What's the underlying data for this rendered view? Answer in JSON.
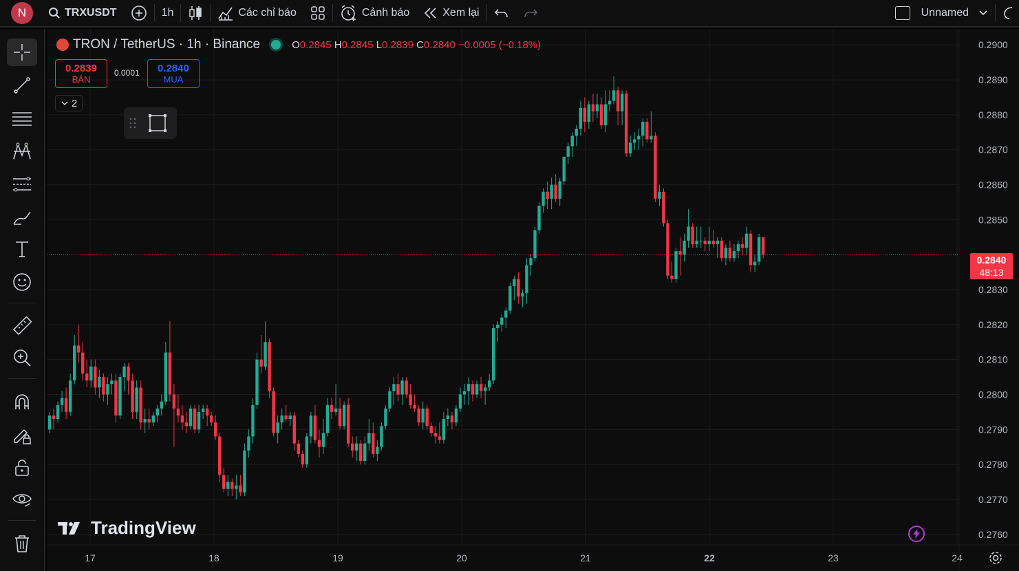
{
  "topbar": {
    "avatar_letter": "N",
    "symbol": "TRXUSDT",
    "interval": "1h",
    "indicators_label": "Các chỉ báo",
    "alerts_label": "Cảnh báo",
    "replay_label": "Xem lại",
    "layout_name": "Unnamed"
  },
  "legend": {
    "title": "TRON / TetherUS · 1h · Binance",
    "o_key": "O",
    "o_val": "0.2845",
    "h_key": "H",
    "h_val": "0.2845",
    "l_key": "L",
    "l_val": "0.2839",
    "c_key": "C",
    "c_val": "0.2840",
    "change": "−0.0005 (−0.18%)"
  },
  "trade": {
    "sell_price": "0.2839",
    "sell_label": "BÁN",
    "spread": "0.0001",
    "buy_price": "0.2840",
    "buy_label": "MUA",
    "collapse_count": "2"
  },
  "branding": {
    "logo_text": "TradingView"
  },
  "price_tag": {
    "price": "0.2840",
    "countdown": "48:13"
  },
  "colors": {
    "up": "#22ab94",
    "down": "#f23645",
    "background": "#0d0d0d",
    "grid": "#1c1c1c",
    "buy": "#2962ff"
  },
  "left_tools": [
    "crosshair-icon",
    "trend-line-icon",
    "horizontal-lines-icon",
    "pitchfork-icon",
    "fib-retracement-icon",
    "brush-icon",
    "text-icon",
    "emoji-icon",
    "ruler-icon",
    "zoom-in-icon",
    "magnet-icon",
    "lock-pencil-icon",
    "lock-icon",
    "eye-icon",
    "trash-icon"
  ],
  "chart_data": {
    "type": "candlestick",
    "title": "TRON / TetherUS · 1h · Binance",
    "x_tick_labels": [
      "17",
      "18",
      "19",
      "20",
      "21",
      "22",
      "23",
      "24"
    ],
    "y_tick_labels": [
      "0.2900",
      "0.2890",
      "0.2880",
      "0.2870",
      "0.2860",
      "0.2850",
      "0.2830",
      "0.2820",
      "0.2810",
      "0.2800",
      "0.2790",
      "0.2780",
      "0.2770",
      "0.2760"
    ],
    "ylim": [
      0.2757,
      0.2903
    ],
    "current_price": 0.284,
    "grid": true,
    "candles": [
      {
        "o": 0.279,
        "h": 0.2795,
        "l": 0.2789,
        "c": 0.2794
      },
      {
        "o": 0.2794,
        "h": 0.2796,
        "l": 0.279,
        "c": 0.2793
      },
      {
        "o": 0.2793,
        "h": 0.2798,
        "l": 0.2792,
        "c": 0.2797
      },
      {
        "o": 0.2797,
        "h": 0.2801,
        "l": 0.2795,
        "c": 0.2799
      },
      {
        "o": 0.2799,
        "h": 0.2802,
        "l": 0.2793,
        "c": 0.2795
      },
      {
        "o": 0.2795,
        "h": 0.2806,
        "l": 0.2794,
        "c": 0.2804
      },
      {
        "o": 0.2804,
        "h": 0.2817,
        "l": 0.2803,
        "c": 0.2814
      },
      {
        "o": 0.2814,
        "h": 0.282,
        "l": 0.2809,
        "c": 0.2812
      },
      {
        "o": 0.2812,
        "h": 0.2815,
        "l": 0.2804,
        "c": 0.2806
      },
      {
        "o": 0.2806,
        "h": 0.281,
        "l": 0.2802,
        "c": 0.2804
      },
      {
        "o": 0.2804,
        "h": 0.281,
        "l": 0.2802,
        "c": 0.2808
      },
      {
        "o": 0.2808,
        "h": 0.281,
        "l": 0.28,
        "c": 0.2802
      },
      {
        "o": 0.2802,
        "h": 0.2807,
        "l": 0.2799,
        "c": 0.2805
      },
      {
        "o": 0.2805,
        "h": 0.2806,
        "l": 0.2798,
        "c": 0.28
      },
      {
        "o": 0.28,
        "h": 0.2805,
        "l": 0.2797,
        "c": 0.2803
      },
      {
        "o": 0.2803,
        "h": 0.2806,
        "l": 0.28,
        "c": 0.2804
      },
      {
        "o": 0.2804,
        "h": 0.2806,
        "l": 0.2792,
        "c": 0.2794
      },
      {
        "o": 0.2794,
        "h": 0.2806,
        "l": 0.2793,
        "c": 0.2805
      },
      {
        "o": 0.2805,
        "h": 0.2809,
        "l": 0.2801,
        "c": 0.2808
      },
      {
        "o": 0.2808,
        "h": 0.2809,
        "l": 0.28,
        "c": 0.2804
      },
      {
        "o": 0.2804,
        "h": 0.2806,
        "l": 0.2793,
        "c": 0.2795
      },
      {
        "o": 0.2795,
        "h": 0.2804,
        "l": 0.2793,
        "c": 0.2802
      },
      {
        "o": 0.2802,
        "h": 0.2804,
        "l": 0.279,
        "c": 0.2792
      },
      {
        "o": 0.2792,
        "h": 0.2796,
        "l": 0.2789,
        "c": 0.2793
      },
      {
        "o": 0.2793,
        "h": 0.2796,
        "l": 0.279,
        "c": 0.2792
      },
      {
        "o": 0.2792,
        "h": 0.2795,
        "l": 0.2791,
        "c": 0.2794
      },
      {
        "o": 0.2794,
        "h": 0.2797,
        "l": 0.2792,
        "c": 0.2796
      },
      {
        "o": 0.2796,
        "h": 0.28,
        "l": 0.2794,
        "c": 0.2798
      },
      {
        "o": 0.2798,
        "h": 0.2815,
        "l": 0.2797,
        "c": 0.2812
      },
      {
        "o": 0.2812,
        "h": 0.2821,
        "l": 0.2798,
        "c": 0.28
      },
      {
        "o": 0.28,
        "h": 0.2803,
        "l": 0.2785,
        "c": 0.2796
      },
      {
        "o": 0.2796,
        "h": 0.28,
        "l": 0.2792,
        "c": 0.2794
      },
      {
        "o": 0.2794,
        "h": 0.2797,
        "l": 0.279,
        "c": 0.2792
      },
      {
        "o": 0.2792,
        "h": 0.2795,
        "l": 0.2789,
        "c": 0.2791
      },
      {
        "o": 0.2791,
        "h": 0.2797,
        "l": 0.279,
        "c": 0.2796
      },
      {
        "o": 0.2796,
        "h": 0.2797,
        "l": 0.2789,
        "c": 0.279
      },
      {
        "o": 0.279,
        "h": 0.2797,
        "l": 0.2789,
        "c": 0.2795
      },
      {
        "o": 0.2795,
        "h": 0.2797,
        "l": 0.2793,
        "c": 0.2796
      },
      {
        "o": 0.2796,
        "h": 0.2797,
        "l": 0.2791,
        "c": 0.2794
      },
      {
        "o": 0.2794,
        "h": 0.2795,
        "l": 0.2791,
        "c": 0.2792
      },
      {
        "o": 0.2792,
        "h": 0.2794,
        "l": 0.2787,
        "c": 0.2788
      },
      {
        "o": 0.2788,
        "h": 0.2789,
        "l": 0.2775,
        "c": 0.2777
      },
      {
        "o": 0.2777,
        "h": 0.2779,
        "l": 0.2772,
        "c": 0.2773
      },
      {
        "o": 0.2773,
        "h": 0.2777,
        "l": 0.2771,
        "c": 0.2775
      },
      {
        "o": 0.2775,
        "h": 0.2776,
        "l": 0.2771,
        "c": 0.2773
      },
      {
        "o": 0.2773,
        "h": 0.2777,
        "l": 0.277,
        "c": 0.2774
      },
      {
        "o": 0.2774,
        "h": 0.2777,
        "l": 0.2771,
        "c": 0.2772
      },
      {
        "o": 0.2772,
        "h": 0.2786,
        "l": 0.2771,
        "c": 0.2784
      },
      {
        "o": 0.2784,
        "h": 0.279,
        "l": 0.2782,
        "c": 0.2788
      },
      {
        "o": 0.2788,
        "h": 0.2799,
        "l": 0.2786,
        "c": 0.2797
      },
      {
        "o": 0.2797,
        "h": 0.2812,
        "l": 0.2796,
        "c": 0.281
      },
      {
        "o": 0.281,
        "h": 0.2817,
        "l": 0.2806,
        "c": 0.2808
      },
      {
        "o": 0.2808,
        "h": 0.2821,
        "l": 0.2807,
        "c": 0.2815
      },
      {
        "o": 0.2815,
        "h": 0.2816,
        "l": 0.2799,
        "c": 0.2801
      },
      {
        "o": 0.2801,
        "h": 0.2802,
        "l": 0.2788,
        "c": 0.2789
      },
      {
        "o": 0.2789,
        "h": 0.2794,
        "l": 0.2786,
        "c": 0.2792
      },
      {
        "o": 0.2792,
        "h": 0.2796,
        "l": 0.279,
        "c": 0.2794
      },
      {
        "o": 0.2794,
        "h": 0.2797,
        "l": 0.2792,
        "c": 0.2793
      },
      {
        "o": 0.2793,
        "h": 0.2795,
        "l": 0.2791,
        "c": 0.2794
      },
      {
        "o": 0.2794,
        "h": 0.2795,
        "l": 0.2784,
        "c": 0.2786
      },
      {
        "o": 0.2786,
        "h": 0.2787,
        "l": 0.2782,
        "c": 0.2783
      },
      {
        "o": 0.2783,
        "h": 0.2784,
        "l": 0.2779,
        "c": 0.278
      },
      {
        "o": 0.278,
        "h": 0.2789,
        "l": 0.2779,
        "c": 0.2788
      },
      {
        "o": 0.2788,
        "h": 0.2795,
        "l": 0.2786,
        "c": 0.2794
      },
      {
        "o": 0.2794,
        "h": 0.2797,
        "l": 0.2786,
        "c": 0.2787
      },
      {
        "o": 0.2787,
        "h": 0.279,
        "l": 0.2782,
        "c": 0.2785
      },
      {
        "o": 0.2785,
        "h": 0.2793,
        "l": 0.2783,
        "c": 0.2789
      },
      {
        "o": 0.2789,
        "h": 0.2799,
        "l": 0.2788,
        "c": 0.2797
      },
      {
        "o": 0.2797,
        "h": 0.2799,
        "l": 0.2793,
        "c": 0.2795
      },
      {
        "o": 0.2795,
        "h": 0.2803,
        "l": 0.2794,
        "c": 0.2796
      },
      {
        "o": 0.2796,
        "h": 0.2799,
        "l": 0.279,
        "c": 0.2791
      },
      {
        "o": 0.2791,
        "h": 0.2798,
        "l": 0.279,
        "c": 0.2797
      },
      {
        "o": 0.2797,
        "h": 0.2799,
        "l": 0.2785,
        "c": 0.2786
      },
      {
        "o": 0.2786,
        "h": 0.2788,
        "l": 0.2782,
        "c": 0.2784
      },
      {
        "o": 0.2784,
        "h": 0.2788,
        "l": 0.2781,
        "c": 0.2786
      },
      {
        "o": 0.2786,
        "h": 0.2787,
        "l": 0.278,
        "c": 0.2781
      },
      {
        "o": 0.2781,
        "h": 0.2788,
        "l": 0.278,
        "c": 0.2786
      },
      {
        "o": 0.2786,
        "h": 0.2793,
        "l": 0.2784,
        "c": 0.2789
      },
      {
        "o": 0.2789,
        "h": 0.2792,
        "l": 0.2782,
        "c": 0.2783
      },
      {
        "o": 0.2783,
        "h": 0.2787,
        "l": 0.2781,
        "c": 0.2785
      },
      {
        "o": 0.2785,
        "h": 0.2792,
        "l": 0.2784,
        "c": 0.2791
      },
      {
        "o": 0.2791,
        "h": 0.2797,
        "l": 0.279,
        "c": 0.2796
      },
      {
        "o": 0.2796,
        "h": 0.2802,
        "l": 0.2795,
        "c": 0.2801
      },
      {
        "o": 0.2801,
        "h": 0.2805,
        "l": 0.2797,
        "c": 0.2803
      },
      {
        "o": 0.2803,
        "h": 0.2806,
        "l": 0.2798,
        "c": 0.28
      },
      {
        "o": 0.28,
        "h": 0.2805,
        "l": 0.2797,
        "c": 0.2804
      },
      {
        "o": 0.2804,
        "h": 0.2805,
        "l": 0.2799,
        "c": 0.28
      },
      {
        "o": 0.28,
        "h": 0.2803,
        "l": 0.2796,
        "c": 0.2797
      },
      {
        "o": 0.2797,
        "h": 0.28,
        "l": 0.2795,
        "c": 0.2796
      },
      {
        "o": 0.2796,
        "h": 0.2797,
        "l": 0.2791,
        "c": 0.2792
      },
      {
        "o": 0.2792,
        "h": 0.2798,
        "l": 0.279,
        "c": 0.2796
      },
      {
        "o": 0.2796,
        "h": 0.2797,
        "l": 0.279,
        "c": 0.2791
      },
      {
        "o": 0.2791,
        "h": 0.2792,
        "l": 0.2788,
        "c": 0.2789
      },
      {
        "o": 0.2789,
        "h": 0.2791,
        "l": 0.2786,
        "c": 0.2788
      },
      {
        "o": 0.2788,
        "h": 0.2792,
        "l": 0.2786,
        "c": 0.2787
      },
      {
        "o": 0.2787,
        "h": 0.2795,
        "l": 0.2786,
        "c": 0.2793
      },
      {
        "o": 0.2793,
        "h": 0.2796,
        "l": 0.2791,
        "c": 0.2794
      },
      {
        "o": 0.2794,
        "h": 0.2795,
        "l": 0.279,
        "c": 0.2792
      },
      {
        "o": 0.2792,
        "h": 0.2797,
        "l": 0.2791,
        "c": 0.2796
      },
      {
        "o": 0.2796,
        "h": 0.2802,
        "l": 0.2795,
        "c": 0.28
      },
      {
        "o": 0.28,
        "h": 0.2803,
        "l": 0.2797,
        "c": 0.2801
      },
      {
        "o": 0.2801,
        "h": 0.2805,
        "l": 0.2797,
        "c": 0.2803
      },
      {
        "o": 0.2803,
        "h": 0.2804,
        "l": 0.2798,
        "c": 0.28
      },
      {
        "o": 0.28,
        "h": 0.2804,
        "l": 0.2799,
        "c": 0.2803
      },
      {
        "o": 0.2803,
        "h": 0.2805,
        "l": 0.2799,
        "c": 0.2801
      },
      {
        "o": 0.2801,
        "h": 0.2803,
        "l": 0.2797,
        "c": 0.2802
      },
      {
        "o": 0.2802,
        "h": 0.2806,
        "l": 0.2801,
        "c": 0.2804
      },
      {
        "o": 0.2804,
        "h": 0.282,
        "l": 0.2803,
        "c": 0.2819
      },
      {
        "o": 0.2819,
        "h": 0.2821,
        "l": 0.2815,
        "c": 0.282
      },
      {
        "o": 0.282,
        "h": 0.2823,
        "l": 0.2818,
        "c": 0.2822
      },
      {
        "o": 0.2822,
        "h": 0.2825,
        "l": 0.2819,
        "c": 0.2824
      },
      {
        "o": 0.2824,
        "h": 0.2832,
        "l": 0.2823,
        "c": 0.2831
      },
      {
        "o": 0.2831,
        "h": 0.2834,
        "l": 0.2827,
        "c": 0.2833
      },
      {
        "o": 0.2833,
        "h": 0.2835,
        "l": 0.2826,
        "c": 0.2828
      },
      {
        "o": 0.2828,
        "h": 0.283,
        "l": 0.2825,
        "c": 0.2829
      },
      {
        "o": 0.2829,
        "h": 0.2839,
        "l": 0.2826,
        "c": 0.2837
      },
      {
        "o": 0.2837,
        "h": 0.284,
        "l": 0.2834,
        "c": 0.2839
      },
      {
        "o": 0.2839,
        "h": 0.2848,
        "l": 0.2838,
        "c": 0.2847
      },
      {
        "o": 0.2847,
        "h": 0.2855,
        "l": 0.2846,
        "c": 0.2854
      },
      {
        "o": 0.2854,
        "h": 0.2859,
        "l": 0.2852,
        "c": 0.2858
      },
      {
        "o": 0.2858,
        "h": 0.2861,
        "l": 0.2853,
        "c": 0.2856
      },
      {
        "o": 0.2856,
        "h": 0.2862,
        "l": 0.2853,
        "c": 0.286
      },
      {
        "o": 0.286,
        "h": 0.2863,
        "l": 0.2855,
        "c": 0.2856
      },
      {
        "o": 0.2856,
        "h": 0.2862,
        "l": 0.2854,
        "c": 0.2861
      },
      {
        "o": 0.2861,
        "h": 0.2868,
        "l": 0.286,
        "c": 0.2868
      },
      {
        "o": 0.2868,
        "h": 0.2872,
        "l": 0.2866,
        "c": 0.2871
      },
      {
        "o": 0.2871,
        "h": 0.2875,
        "l": 0.2868,
        "c": 0.2874
      },
      {
        "o": 0.2874,
        "h": 0.2877,
        "l": 0.2871,
        "c": 0.2876
      },
      {
        "o": 0.2876,
        "h": 0.2884,
        "l": 0.2874,
        "c": 0.2882
      },
      {
        "o": 0.2882,
        "h": 0.2885,
        "l": 0.2875,
        "c": 0.2878
      },
      {
        "o": 0.2878,
        "h": 0.2884,
        "l": 0.2876,
        "c": 0.2883
      },
      {
        "o": 0.2883,
        "h": 0.2886,
        "l": 0.2878,
        "c": 0.2881
      },
      {
        "o": 0.2881,
        "h": 0.2886,
        "l": 0.2879,
        "c": 0.2883
      },
      {
        "o": 0.2883,
        "h": 0.2885,
        "l": 0.2876,
        "c": 0.2877
      },
      {
        "o": 0.2877,
        "h": 0.2887,
        "l": 0.2875,
        "c": 0.2883
      },
      {
        "o": 0.2883,
        "h": 0.2887,
        "l": 0.2881,
        "c": 0.2884
      },
      {
        "o": 0.2884,
        "h": 0.2891,
        "l": 0.2883,
        "c": 0.2887
      },
      {
        "o": 0.2887,
        "h": 0.2888,
        "l": 0.2877,
        "c": 0.2881
      },
      {
        "o": 0.2881,
        "h": 0.2887,
        "l": 0.2877,
        "c": 0.2886
      },
      {
        "o": 0.2886,
        "h": 0.2887,
        "l": 0.2868,
        "c": 0.2869
      },
      {
        "o": 0.2869,
        "h": 0.2874,
        "l": 0.2868,
        "c": 0.2872
      },
      {
        "o": 0.2872,
        "h": 0.2875,
        "l": 0.287,
        "c": 0.2873
      },
      {
        "o": 0.2873,
        "h": 0.2876,
        "l": 0.287,
        "c": 0.2874
      },
      {
        "o": 0.2874,
        "h": 0.2879,
        "l": 0.2871,
        "c": 0.2878
      },
      {
        "o": 0.2878,
        "h": 0.2879,
        "l": 0.2872,
        "c": 0.2873
      },
      {
        "o": 0.2873,
        "h": 0.2881,
        "l": 0.2872,
        "c": 0.2874
      },
      {
        "o": 0.2874,
        "h": 0.2875,
        "l": 0.2855,
        "c": 0.2856
      },
      {
        "o": 0.2856,
        "h": 0.286,
        "l": 0.2854,
        "c": 0.2858
      },
      {
        "o": 0.2858,
        "h": 0.2859,
        "l": 0.2848,
        "c": 0.2849
      },
      {
        "o": 0.2849,
        "h": 0.285,
        "l": 0.2833,
        "c": 0.2834
      },
      {
        "o": 0.2834,
        "h": 0.2838,
        "l": 0.2832,
        "c": 0.2833
      },
      {
        "o": 0.2833,
        "h": 0.2842,
        "l": 0.2832,
        "c": 0.2841
      },
      {
        "o": 0.2841,
        "h": 0.2845,
        "l": 0.2834,
        "c": 0.284
      },
      {
        "o": 0.284,
        "h": 0.2846,
        "l": 0.2838,
        "c": 0.2844
      },
      {
        "o": 0.2844,
        "h": 0.2853,
        "l": 0.2842,
        "c": 0.2848
      },
      {
        "o": 0.2848,
        "h": 0.2849,
        "l": 0.2842,
        "c": 0.2843
      },
      {
        "o": 0.2843,
        "h": 0.2848,
        "l": 0.2842,
        "c": 0.2844
      },
      {
        "o": 0.2844,
        "h": 0.2848,
        "l": 0.2842,
        "c": 0.2844
      },
      {
        "o": 0.2844,
        "h": 0.2845,
        "l": 0.2841,
        "c": 0.2843
      },
      {
        "o": 0.2843,
        "h": 0.2848,
        "l": 0.2841,
        "c": 0.2844
      },
      {
        "o": 0.2844,
        "h": 0.2847,
        "l": 0.2842,
        "c": 0.2843
      },
      {
        "o": 0.2843,
        "h": 0.2845,
        "l": 0.2839,
        "c": 0.2844
      },
      {
        "o": 0.2844,
        "h": 0.2845,
        "l": 0.2838,
        "c": 0.2839
      },
      {
        "o": 0.2839,
        "h": 0.2843,
        "l": 0.2837,
        "c": 0.2842
      },
      {
        "o": 0.2842,
        "h": 0.2844,
        "l": 0.2838,
        "c": 0.2839
      },
      {
        "o": 0.2839,
        "h": 0.2843,
        "l": 0.2838,
        "c": 0.2841
      },
      {
        "o": 0.2841,
        "h": 0.2844,
        "l": 0.2839,
        "c": 0.2843
      },
      {
        "o": 0.2843,
        "h": 0.2845,
        "l": 0.284,
        "c": 0.2842
      },
      {
        "o": 0.2842,
        "h": 0.2848,
        "l": 0.284,
        "c": 0.2846
      },
      {
        "o": 0.2846,
        "h": 0.2847,
        "l": 0.2835,
        "c": 0.2837
      },
      {
        "o": 0.2837,
        "h": 0.284,
        "l": 0.2835,
        "c": 0.2838
      },
      {
        "o": 0.2838,
        "h": 0.2846,
        "l": 0.2837,
        "c": 0.2845
      },
      {
        "o": 0.2845,
        "h": 0.2845,
        "l": 0.2839,
        "c": 0.284
      }
    ]
  }
}
